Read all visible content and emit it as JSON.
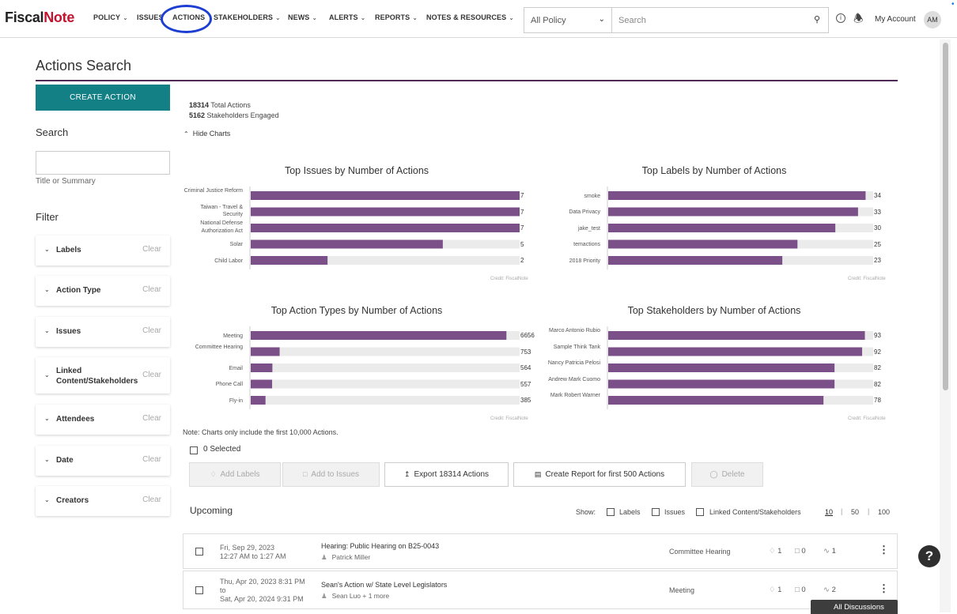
{
  "nav": {
    "logo_a": "Fiscal",
    "logo_b": "Note",
    "items": [
      "POLICY",
      "ISSUES",
      "ACTIONS",
      "STAKEHOLDERS",
      "NEWS",
      "ALERTS",
      "REPORTS",
      "NOTES & RESOURCES"
    ],
    "policy_select": "All Policy",
    "search_placeholder": "Search",
    "account": "My Account",
    "avatar": "AM"
  },
  "page": {
    "title": "Actions Search",
    "create_button": "CREATE ACTION"
  },
  "sidebar": {
    "search_heading": "Search",
    "search_hint": "Title or Summary",
    "filter_heading": "Filter",
    "clear_label": "Clear",
    "filters": [
      "Labels",
      "Action Type",
      "Issues",
      "Linked Content/Stakeholders",
      "Attendees",
      "Date",
      "Creators"
    ]
  },
  "summary": {
    "total_count": "18314",
    "total_label": "Total Actions",
    "engaged_count": "5162",
    "engaged_label": "Stakeholders Engaged",
    "hide_charts": "Hide Charts"
  },
  "chart_data": [
    {
      "type": "bar",
      "orientation": "horizontal",
      "title": "Top Issues by Number of Actions",
      "categories": [
        "Criminal Justice Reform",
        "Taiwan - Travel & Security",
        "National Defense Authorization Act",
        "Solar",
        "Child Labor"
      ],
      "values": [
        7,
        7,
        7,
        5,
        2
      ],
      "xlim": [
        0,
        7
      ],
      "color": "#7b4f88",
      "credit": "Credit: FiscalNote"
    },
    {
      "type": "bar",
      "orientation": "horizontal",
      "title": "Top Labels by Number of Actions",
      "categories": [
        "smoke",
        "Data Privacy",
        "jake_test",
        "temactions",
        "2018 Priority"
      ],
      "values": [
        34,
        33,
        30,
        25,
        23
      ],
      "xlim": [
        0,
        35
      ],
      "color": "#7b4f88",
      "credit": "Credit: FiscalNote"
    },
    {
      "type": "bar",
      "orientation": "horizontal",
      "title": "Top Action Types by Number of Actions",
      "categories": [
        "Meeting",
        "Committee Hearing",
        "Email",
        "Phone Call",
        "Fly-in"
      ],
      "values": [
        6656,
        753,
        564,
        557,
        385
      ],
      "xlim": [
        0,
        7000
      ],
      "color": "#7b4f88",
      "credit": "Credit: FiscalNote"
    },
    {
      "type": "bar",
      "orientation": "horizontal",
      "title": "Top Stakeholders by Number of Actions",
      "categories": [
        "Marco Antonio Rubio",
        "Sample Think Tank",
        "Nancy Patricia Pelosi",
        "Andrew Mark Cuomo",
        "Mark Robert Warner"
      ],
      "values": [
        93,
        92,
        82,
        82,
        78
      ],
      "xlim": [
        0,
        96
      ],
      "color": "#7b4f88",
      "credit": "Credit: FiscalNote"
    }
  ],
  "note": "Note: Charts only include the first 10,000 Actions.",
  "bulk": {
    "selected": "0 Selected",
    "add_labels": "Add Labels",
    "add_issues": "Add to Issues",
    "export": "Export 18314 Actions",
    "report": "Create Report for first 500 Actions",
    "delete": "Delete"
  },
  "list": {
    "heading": "Upcoming",
    "show": "Show:",
    "options": [
      "Labels",
      "Issues",
      "Linked Content/Stakeholders"
    ],
    "page_sizes": [
      "10",
      "50",
      "100"
    ],
    "rows": [
      {
        "date1": "Fri, Sep 29, 2023",
        "date2": "12:27 AM to 1:27 AM",
        "date3": "",
        "title": "Hearing: Public Hearing on B25-0043",
        "people": "Patrick Miller",
        "type": "Committee Hearing",
        "labels": "1",
        "issues": "0",
        "links": "1"
      },
      {
        "date1": "Thu, Apr 20, 2023 8:31 PM",
        "date2": "to",
        "date3": "Sat, Apr 20, 2024 9:31 PM",
        "title": "Sean's Action w/ State Level Legislators",
        "people": "Sean Luo + 1 more",
        "type": "Meeting",
        "labels": "1",
        "issues": "0",
        "links": "2"
      }
    ]
  },
  "help": "?",
  "discussions": "All Discussions"
}
